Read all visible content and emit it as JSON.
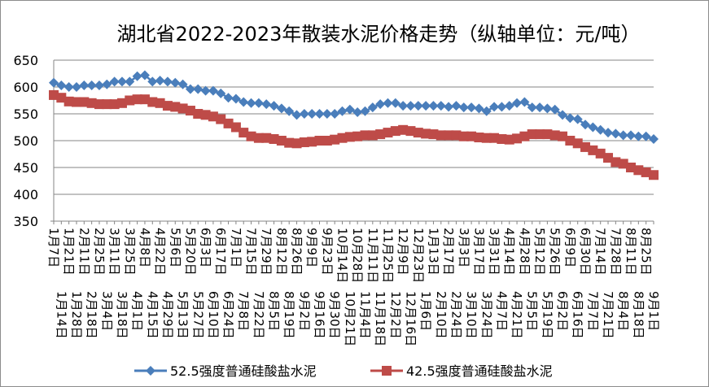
{
  "chart_data": {
    "type": "line",
    "title": "湖北省2022-2023年散装水泥价格走势（纵轴单位：元/吨）",
    "xlabel": "",
    "ylabel": "",
    "ylim": [
      350,
      650
    ],
    "yticks": [
      350,
      400,
      450,
      500,
      550,
      600,
      650
    ],
    "grid": true,
    "legend_position": "bottom",
    "x": [
      "1月7日",
      "1月14日",
      "1月21日",
      "1月28日",
      "2月11日",
      "2月18日",
      "2月25日",
      "3月4日",
      "3月11日",
      "3月18日",
      "3月25日",
      "4月1日",
      "4月8日",
      "4月15日",
      "4月22日",
      "4月29日",
      "5月6日",
      "5月13日",
      "5月20日",
      "5月27日",
      "6月3日",
      "6月10日",
      "6月17日",
      "6月24日",
      "7月1日",
      "7月8日",
      "7月15日",
      "7月22日",
      "7月29日",
      "8月5日",
      "8月12日",
      "8月19日",
      "8月26日",
      "9月2日",
      "9月9日",
      "9月16日",
      "9月23日",
      "9月30日",
      "10月14日",
      "10月21日",
      "10月28日",
      "11月4日",
      "11月11日",
      "11月18日",
      "11月25日",
      "12月2日",
      "12月9日",
      "12月16日",
      "12月23日",
      "1月6日",
      "1月13日",
      "2月10日",
      "2月17日",
      "2月24日",
      "3月3日",
      "3月10日",
      "3月17日",
      "3月24日",
      "3月31日",
      "4月7日",
      "4月14日",
      "4月21日",
      "4月28日",
      "5月5日",
      "5月12日",
      "5月19日",
      "5月26日",
      "6月2日",
      "6月9日",
      "6月16日",
      "6月30日",
      "7月7日",
      "7月14日",
      "7月21日",
      "7月28日",
      "8月4日",
      "8月11日",
      "8月18日",
      "8月25日",
      "9月1日"
    ],
    "series": [
      {
        "name": "52.5强度普通硅酸盐水泥",
        "color": "#4a7ebb",
        "marker": "diamond",
        "values": [
          608,
          603,
          600,
          600,
          603,
          603,
          603,
          605,
          610,
          610,
          610,
          620,
          622,
          610,
          612,
          610,
          608,
          605,
          596,
          596,
          593,
          593,
          588,
          580,
          578,
          572,
          570,
          570,
          568,
          565,
          560,
          555,
          548,
          550,
          550,
          550,
          550,
          550,
          555,
          558,
          553,
          555,
          562,
          568,
          570,
          570,
          565,
          565,
          565,
          565,
          565,
          565,
          563,
          565,
          562,
          562,
          560,
          555,
          563,
          563,
          565,
          570,
          572,
          562,
          562,
          560,
          558,
          548,
          542,
          540,
          530,
          525,
          520,
          515,
          513,
          510,
          510,
          508,
          508,
          503
        ]
      },
      {
        "name": "42.5强度普通硅酸盐水泥",
        "color": "#be4b48",
        "marker": "square",
        "values": [
          585,
          580,
          573,
          572,
          572,
          570,
          568,
          568,
          568,
          570,
          575,
          577,
          577,
          572,
          570,
          565,
          563,
          560,
          556,
          550,
          548,
          545,
          540,
          532,
          525,
          515,
          508,
          505,
          505,
          503,
          500,
          496,
          495,
          497,
          498,
          500,
          500,
          502,
          505,
          507,
          508,
          510,
          510,
          512,
          515,
          518,
          520,
          518,
          515,
          513,
          512,
          510,
          510,
          510,
          508,
          508,
          506,
          505,
          505,
          503,
          502,
          504,
          508,
          512,
          512,
          512,
          510,
          508,
          500,
          495,
          488,
          482,
          476,
          468,
          460,
          457,
          450,
          445,
          441,
          436
        ]
      }
    ]
  }
}
